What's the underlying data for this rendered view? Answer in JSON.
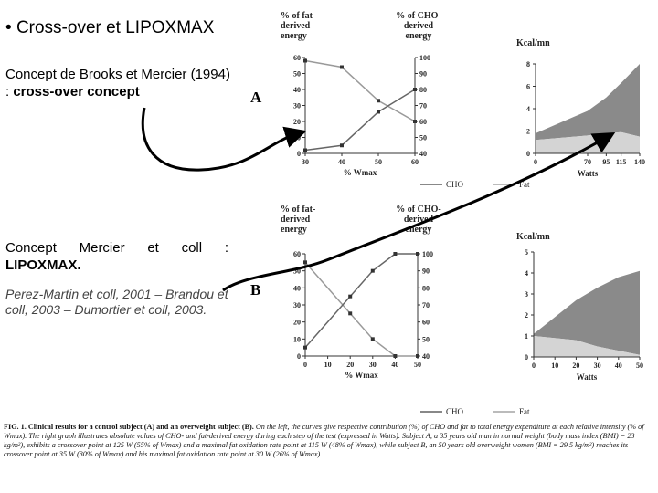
{
  "slide": {
    "title": "Cross-over et LIPOXMAX",
    "bullet": "•",
    "para1_a": "Concept de Brooks et Mercier (1994) : ",
    "para1_b": "cross-over concept",
    "para2_a": "Concept Mercier et coll : ",
    "para2_b": "LIPOXMAX.",
    "refs": "Perez-Martin et coll, 2001 – Brandou et coll, 2003 – Dumortier et coll, 2003."
  },
  "figure": {
    "labels": {
      "a": "A",
      "b": "B"
    },
    "left_axis_head": "% of fat-derived energy",
    "right_axis_head": "% of CHO-derived energy",
    "kcal_head": "Kcal/mn",
    "legend_cho": "CHO",
    "legend_fat": "Fat",
    "xlabel_left_a": "% Wmax",
    "xlabel_left_b": "% Wmax",
    "xlabel_right": "Watts",
    "colors": {
      "cho": "#8a8a8a",
      "fat": "#d4d4d4",
      "line": "#555555"
    }
  },
  "caption": {
    "lead": "FIG. 1. Clinical results for a control subject (A) and an overweight subject (B).",
    "body": "On the left, the curves give respective contribution (%) of CHO and fat to total energy expenditure at each relative intensity (% of Wmax). The right graph illustrates absolute values of CHO- and fat-derived energy during each step of the test (expressed in Watts). Subject A, a 35 years old man in normal weight (body mass index (BMI) = 23 kg/m²), exhibits a crossover point at 125 W (55% of Wmax) and a maximal fat oxidation rate point at 115 W (48% of Wmax), while subject B, an 50 years old overweight women (BMI = 29.5 kg/m²) reaches its crossover point at 35 W (30% of Wmax) and his maximal fat oxidation rate point at 30 W (26% of Wmax)."
  },
  "chart_data": [
    {
      "type": "line",
      "title": "A",
      "xlabel": "% Wmax",
      "x": [
        30,
        40,
        50,
        60
      ],
      "xlim": [
        30,
        60
      ],
      "y_left_label": "% of fat-derived energy",
      "ylim_left": [
        0,
        60
      ],
      "y_right_label": "% of CHO-derived energy",
      "ylim_right": [
        40,
        100
      ],
      "series": [
        {
          "axis": "left",
          "values": [
            58,
            54,
            33,
            20
          ]
        },
        {
          "axis": "right",
          "values": [
            42,
            45,
            66,
            80
          ]
        }
      ]
    },
    {
      "type": "area",
      "title": "A",
      "xlabel": "Watts",
      "ylabel": "Kcal/mn",
      "x": [
        0,
        70,
        95,
        115,
        140
      ],
      "xlim": [
        0,
        140
      ],
      "ylim": [
        0,
        8
      ],
      "series": [
        {
          "name": "Fat",
          "values": [
            1.2,
            1.6,
            1.8,
            1.9,
            1.5
          ]
        },
        {
          "name": "CHO",
          "values": [
            0.6,
            2.2,
            3.2,
            4.4,
            6.5
          ]
        }
      ]
    },
    {
      "type": "line",
      "title": "B",
      "xlabel": "% Wmax",
      "x": [
        0,
        20,
        30,
        40,
        50
      ],
      "xlim": [
        0,
        50
      ],
      "y_left_label": "% of fat-derived energy",
      "ylim_left": [
        0,
        60
      ],
      "y_right_label": "% of CHO-derived energy",
      "ylim_right": [
        40,
        100
      ],
      "series": [
        {
          "axis": "left",
          "values": [
            55,
            25,
            10,
            0,
            0
          ]
        },
        {
          "axis": "right",
          "values": [
            45,
            75,
            90,
            100,
            100
          ]
        }
      ]
    },
    {
      "type": "area",
      "title": "B",
      "xlabel": "Watts",
      "ylabel": "Kcal/mn",
      "x": [
        0,
        20,
        30,
        40,
        50
      ],
      "xlim": [
        0,
        50
      ],
      "ylim": [
        0,
        5
      ],
      "series": [
        {
          "name": "Fat",
          "values": [
            1.0,
            0.8,
            0.5,
            0.3,
            0.1
          ]
        },
        {
          "name": "CHO",
          "values": [
            0.1,
            1.9,
            2.8,
            3.5,
            4.0
          ]
        }
      ]
    }
  ]
}
